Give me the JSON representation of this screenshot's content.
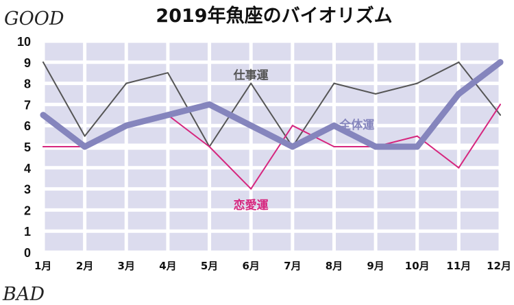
{
  "chart_data": {
    "type": "line",
    "title": "2019年魚座のバイオリズム",
    "top_label": "GOOD",
    "bottom_label": "BAD",
    "categories": [
      "1月",
      "2月",
      "3月",
      "4月",
      "5月",
      "6月",
      "7月",
      "8月",
      "9月",
      "10月",
      "11月",
      "12月"
    ],
    "ylim": [
      0,
      10
    ],
    "yticks": [
      "0",
      "1",
      "2",
      "3",
      "4",
      "5",
      "6",
      "7",
      "8",
      "9",
      "10"
    ],
    "grid": true,
    "legend": "none",
    "series": [
      {
        "name": "仕事運",
        "values": [
          9,
          5.5,
          8,
          8.5,
          5,
          8,
          5,
          8,
          7.5,
          8,
          9,
          6.5
        ],
        "color": "#555555"
      },
      {
        "name": "恋愛運",
        "values": [
          5,
          5,
          6,
          6.5,
          5,
          3,
          6,
          5,
          5,
          5.5,
          4,
          7
        ],
        "color": "#d6267e"
      },
      {
        "name": "全体運",
        "values": [
          6.5,
          5,
          6,
          6.5,
          7,
          6,
          5,
          6,
          5,
          5,
          7.5,
          9
        ],
        "color": "#8585bd"
      }
    ],
    "colors": {
      "plot_background": "#dcdcee",
      "grid": "#ffffff",
      "reference_line": "#ffffff"
    }
  }
}
